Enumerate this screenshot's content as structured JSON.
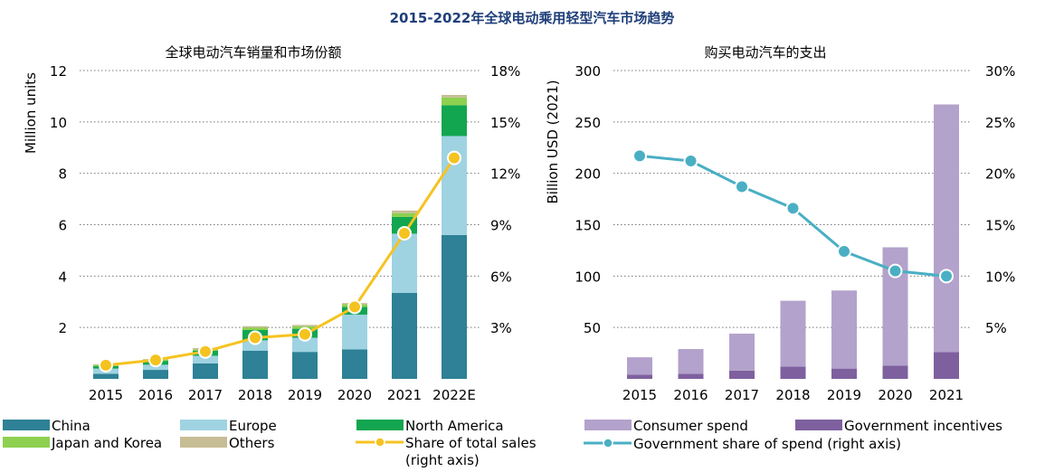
{
  "main_title": "2015-2022年全球电动乘用轻型汽车市场趋势",
  "colors": {
    "title": "#1f3f7a",
    "china": "#2e8196",
    "europe": "#9fd3e2",
    "north_america": "#12a650",
    "japan_korea": "#8ed04f",
    "others": "#c7bd95",
    "share_line": "#f5c320",
    "consumer": "#b3a2cb",
    "government": "#7e609f",
    "gov_share_line": "#4aafc4",
    "grid": "#777777"
  },
  "chart_data": [
    {
      "type": "bar",
      "stacked": true,
      "title": "全球电动汽车销量和市场份额",
      "categories": [
        "2015",
        "2016",
        "2017",
        "2018",
        "2019",
        "2020",
        "2021",
        "2022E"
      ],
      "ylabel": "Million units",
      "ylim": [
        0,
        12
      ],
      "yticks": [
        "2",
        "4",
        "6",
        "8",
        "10",
        "12"
      ],
      "y2lim": [
        0,
        18
      ],
      "y2ticks": [
        "3%",
        "6%",
        "9%",
        "12%",
        "15%",
        "18%"
      ],
      "grid": true,
      "series": [
        {
          "name": "China",
          "color_key": "china",
          "values": [
            0.2,
            0.35,
            0.6,
            1.1,
            1.05,
            1.15,
            3.35,
            5.6
          ]
        },
        {
          "name": "Europe",
          "color_key": "europe",
          "values": [
            0.2,
            0.2,
            0.3,
            0.4,
            0.55,
            1.35,
            2.3,
            3.85
          ]
        },
        {
          "name": "North America",
          "color_key": "north_america",
          "values": [
            0.1,
            0.15,
            0.2,
            0.4,
            0.35,
            0.3,
            0.65,
            1.2
          ]
        },
        {
          "name": "Japan and Korea",
          "color_key": "japan_korea",
          "values": [
            0.05,
            0.05,
            0.05,
            0.1,
            0.1,
            0.1,
            0.15,
            0.3
          ]
        },
        {
          "name": "Others",
          "color_key": "others",
          "values": [
            0.02,
            0.02,
            0.05,
            0.05,
            0.05,
            0.05,
            0.1,
            0.1
          ]
        }
      ],
      "line": {
        "name": "Share of total sales (right axis)",
        "color_key": "share_line",
        "values": [
          0.8,
          1.1,
          1.6,
          2.4,
          2.6,
          4.2,
          8.5,
          12.9
        ]
      },
      "legend": [
        {
          "label": "China",
          "color_key": "china",
          "marker": "box"
        },
        {
          "label": "Europe",
          "color_key": "europe",
          "marker": "box"
        },
        {
          "label": "North America",
          "color_key": "north_america",
          "marker": "box"
        },
        {
          "label": "Japan and Korea",
          "color_key": "japan_korea",
          "marker": "box"
        },
        {
          "label": "Others",
          "color_key": "others",
          "marker": "box"
        },
        {
          "label": "Share of total sales",
          "label2": "(right axis)",
          "color_key": "share_line",
          "marker": "line"
        }
      ],
      "legend_position": "bottom"
    },
    {
      "type": "bar",
      "stacked": true,
      "title": "购买电动汽车的支出",
      "categories": [
        "2015",
        "2016",
        "2017",
        "2018",
        "2019",
        "2020",
        "2021"
      ],
      "ylabel": "Billion USD (2021)",
      "ylim": [
        0,
        300
      ],
      "yticks": [
        "50",
        "100",
        "150",
        "200",
        "250",
        "300"
      ],
      "y2lim": [
        0,
        30
      ],
      "y2ticks": [
        "5%",
        "10%",
        "15%",
        "20%",
        "25%",
        "30%"
      ],
      "grid": true,
      "series": [
        {
          "name": "Government incentives",
          "color_key": "government",
          "values": [
            4,
            5,
            8,
            12,
            10,
            13,
            26
          ]
        },
        {
          "name": "Consumer spend",
          "color_key": "consumer",
          "values": [
            17,
            24,
            36,
            64,
            76,
            115,
            241
          ]
        }
      ],
      "line": {
        "name": "Government share of spend (right axis)",
        "color_key": "gov_share_line",
        "values": [
          21.7,
          21.2,
          18.7,
          16.6,
          12.4,
          10.5,
          10.0
        ]
      },
      "legend": [
        {
          "label": "Consumer spend",
          "color_key": "consumer",
          "marker": "box"
        },
        {
          "label": "Government incentives",
          "color_key": "government",
          "marker": "box"
        },
        {
          "label": "Government share of spend (right axis)",
          "color_key": "gov_share_line",
          "marker": "line"
        }
      ],
      "legend_position": "bottom"
    }
  ]
}
